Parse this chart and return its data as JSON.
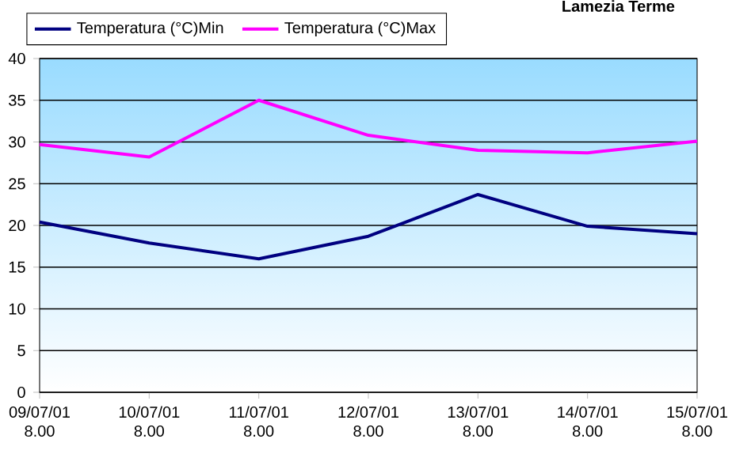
{
  "chart_data": {
    "type": "line",
    "title": "Lamezia Terme",
    "categories": [
      "09/07/01 8.00",
      "10/07/01 8.00",
      "11/07/01 8.00",
      "12/07/01 8.00",
      "13/07/01 8.00",
      "14/07/01 8.00",
      "15/07/01 8.00"
    ],
    "series": [
      {
        "name": "Temperatura (°C)Min",
        "color": "#000080",
        "values": [
          20.4,
          17.9,
          16.0,
          18.7,
          23.7,
          19.9,
          19.0
        ]
      },
      {
        "name": "Temperatura (°C)Max",
        "color": "#ff00ff",
        "values": [
          29.7,
          28.2,
          35.0,
          30.8,
          29.0,
          28.7,
          30.1
        ]
      }
    ],
    "ylim": [
      0,
      40
    ],
    "yticks": [
      0,
      5,
      10,
      15,
      20,
      25,
      30,
      35,
      40
    ],
    "grid": "y",
    "legend": "top left",
    "marker": "none",
    "line_style": "solid"
  }
}
